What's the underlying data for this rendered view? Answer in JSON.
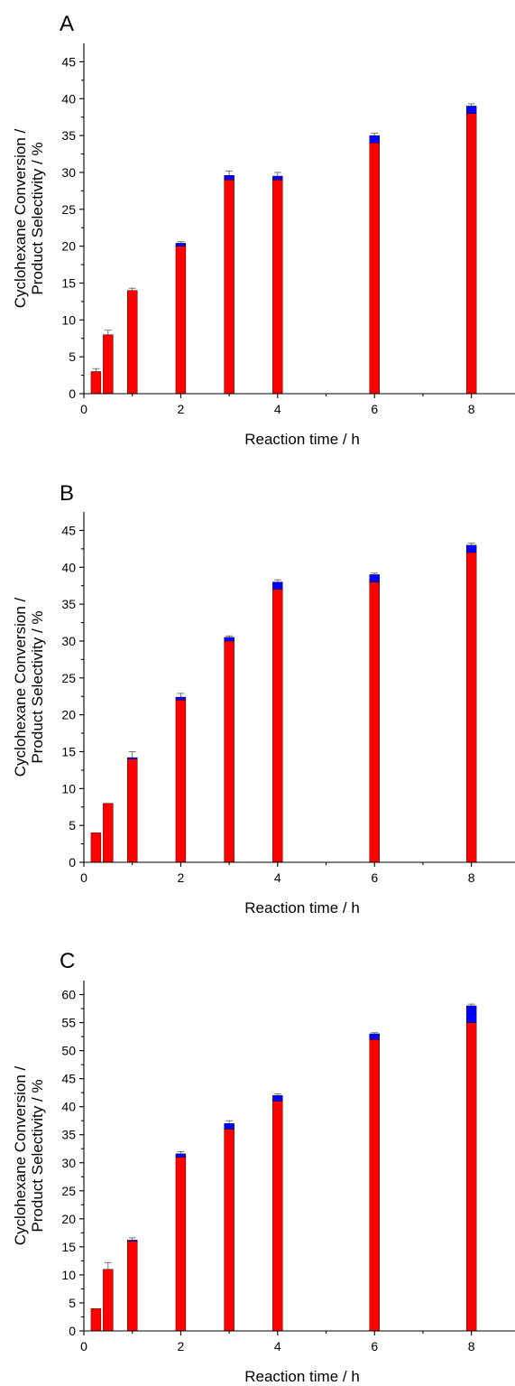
{
  "chart_data": [
    {
      "type": "bar",
      "panel_label": "A",
      "xlabel": "Reaction time / h",
      "ylabel_lines": [
        "Cyclohexane Conversion /",
        "Product Selectivity / %"
      ],
      "xlim": [
        0,
        8.9
      ],
      "ylim": [
        0,
        47.5
      ],
      "xticks": [
        0,
        2,
        4,
        6,
        8
      ],
      "yticks": [
        0,
        5,
        10,
        15,
        20,
        25,
        30,
        35,
        40,
        45
      ],
      "stacked": true,
      "x": [
        0.25,
        0.5,
        1,
        2,
        3,
        4,
        6,
        8
      ],
      "series": [
        {
          "values": [
            3,
            8,
            14,
            20,
            29,
            29,
            34,
            38
          ],
          "color": "#ff0000"
        },
        {
          "values": [
            0,
            0,
            0,
            0.4,
            0.6,
            0.5,
            1.0,
            1.0
          ],
          "color": "#0000ff"
        }
      ],
      "error": [
        0.4,
        0.6,
        0.3,
        0.2,
        0.6,
        0.5,
        0.3,
        0.3
      ]
    },
    {
      "type": "bar",
      "panel_label": "B",
      "xlabel": "Reaction time / h",
      "ylabel_lines": [
        "Cyclohexane Conversion /",
        "Product Selectivity / %"
      ],
      "xlim": [
        0,
        8.9
      ],
      "ylim": [
        0,
        47.5
      ],
      "xticks": [
        0,
        2,
        4,
        6,
        8
      ],
      "yticks": [
        0,
        5,
        10,
        15,
        20,
        25,
        30,
        35,
        40,
        45
      ],
      "stacked": true,
      "x": [
        0.25,
        0.5,
        1,
        2,
        3,
        4,
        6,
        8
      ],
      "series": [
        {
          "values": [
            4,
            8,
            14,
            22,
            30,
            37,
            38,
            42
          ],
          "color": "#ff0000"
        },
        {
          "values": [
            0,
            0,
            0.2,
            0.4,
            0.5,
            1.0,
            1.0,
            1.0
          ],
          "color": "#0000ff"
        }
      ],
      "error": [
        0,
        0,
        0.8,
        0.5,
        0.2,
        0.3,
        0.2,
        0.3
      ]
    },
    {
      "type": "bar",
      "panel_label": "C",
      "xlabel": "Reaction time / h",
      "ylabel_lines": [
        "Cyclohexane Conversion /",
        "Product Selectivity / %"
      ],
      "xlim": [
        0,
        8.9
      ],
      "ylim": [
        0,
        62.5
      ],
      "xticks": [
        0,
        2,
        4,
        6,
        8
      ],
      "yticks": [
        0,
        5,
        10,
        15,
        20,
        25,
        30,
        35,
        40,
        45,
        50,
        55,
        60
      ],
      "stacked": true,
      "x": [
        0.25,
        0.5,
        1,
        2,
        3,
        4,
        6,
        8
      ],
      "series": [
        {
          "values": [
            4,
            11,
            16,
            31,
            36,
            41,
            52,
            55
          ],
          "color": "#ff0000"
        },
        {
          "values": [
            0,
            0,
            0.2,
            0.6,
            1.0,
            1.0,
            1.0,
            3.0
          ],
          "color": "#0000ff"
        }
      ],
      "error": [
        0,
        1.2,
        0.4,
        0.4,
        0.5,
        0.3,
        0.2,
        0.3
      ]
    }
  ]
}
